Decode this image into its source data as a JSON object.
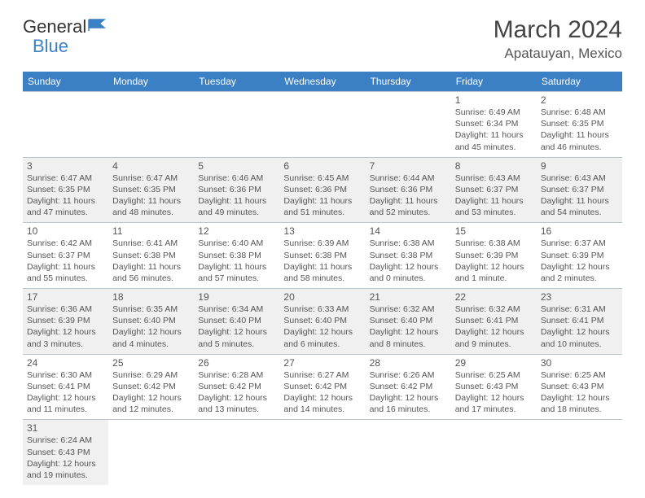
{
  "logo": {
    "text1": "General",
    "text2": "Blue"
  },
  "title": "March 2024",
  "location": "Apatauyan, Mexico",
  "colors": {
    "header_bg": "#3b7fc4",
    "header_fg": "#ffffff",
    "row_alt": "#f0f0f0",
    "border": "#b8c5d0"
  },
  "day_headers": [
    "Sunday",
    "Monday",
    "Tuesday",
    "Wednesday",
    "Thursday",
    "Friday",
    "Saturday"
  ],
  "weeks": [
    [
      null,
      null,
      null,
      null,
      null,
      {
        "n": "1",
        "sr": "Sunrise: 6:49 AM",
        "ss": "Sunset: 6:34 PM",
        "dl": "Daylight: 11 hours and 45 minutes."
      },
      {
        "n": "2",
        "sr": "Sunrise: 6:48 AM",
        "ss": "Sunset: 6:35 PM",
        "dl": "Daylight: 11 hours and 46 minutes."
      }
    ],
    [
      {
        "n": "3",
        "sr": "Sunrise: 6:47 AM",
        "ss": "Sunset: 6:35 PM",
        "dl": "Daylight: 11 hours and 47 minutes."
      },
      {
        "n": "4",
        "sr": "Sunrise: 6:47 AM",
        "ss": "Sunset: 6:35 PM",
        "dl": "Daylight: 11 hours and 48 minutes."
      },
      {
        "n": "5",
        "sr": "Sunrise: 6:46 AM",
        "ss": "Sunset: 6:36 PM",
        "dl": "Daylight: 11 hours and 49 minutes."
      },
      {
        "n": "6",
        "sr": "Sunrise: 6:45 AM",
        "ss": "Sunset: 6:36 PM",
        "dl": "Daylight: 11 hours and 51 minutes."
      },
      {
        "n": "7",
        "sr": "Sunrise: 6:44 AM",
        "ss": "Sunset: 6:36 PM",
        "dl": "Daylight: 11 hours and 52 minutes."
      },
      {
        "n": "8",
        "sr": "Sunrise: 6:43 AM",
        "ss": "Sunset: 6:37 PM",
        "dl": "Daylight: 11 hours and 53 minutes."
      },
      {
        "n": "9",
        "sr": "Sunrise: 6:43 AM",
        "ss": "Sunset: 6:37 PM",
        "dl": "Daylight: 11 hours and 54 minutes."
      }
    ],
    [
      {
        "n": "10",
        "sr": "Sunrise: 6:42 AM",
        "ss": "Sunset: 6:37 PM",
        "dl": "Daylight: 11 hours and 55 minutes."
      },
      {
        "n": "11",
        "sr": "Sunrise: 6:41 AM",
        "ss": "Sunset: 6:38 PM",
        "dl": "Daylight: 11 hours and 56 minutes."
      },
      {
        "n": "12",
        "sr": "Sunrise: 6:40 AM",
        "ss": "Sunset: 6:38 PM",
        "dl": "Daylight: 11 hours and 57 minutes."
      },
      {
        "n": "13",
        "sr": "Sunrise: 6:39 AM",
        "ss": "Sunset: 6:38 PM",
        "dl": "Daylight: 11 hours and 58 minutes."
      },
      {
        "n": "14",
        "sr": "Sunrise: 6:38 AM",
        "ss": "Sunset: 6:38 PM",
        "dl": "Daylight: 12 hours and 0 minutes."
      },
      {
        "n": "15",
        "sr": "Sunrise: 6:38 AM",
        "ss": "Sunset: 6:39 PM",
        "dl": "Daylight: 12 hours and 1 minute."
      },
      {
        "n": "16",
        "sr": "Sunrise: 6:37 AM",
        "ss": "Sunset: 6:39 PM",
        "dl": "Daylight: 12 hours and 2 minutes."
      }
    ],
    [
      {
        "n": "17",
        "sr": "Sunrise: 6:36 AM",
        "ss": "Sunset: 6:39 PM",
        "dl": "Daylight: 12 hours and 3 minutes."
      },
      {
        "n": "18",
        "sr": "Sunrise: 6:35 AM",
        "ss": "Sunset: 6:40 PM",
        "dl": "Daylight: 12 hours and 4 minutes."
      },
      {
        "n": "19",
        "sr": "Sunrise: 6:34 AM",
        "ss": "Sunset: 6:40 PM",
        "dl": "Daylight: 12 hours and 5 minutes."
      },
      {
        "n": "20",
        "sr": "Sunrise: 6:33 AM",
        "ss": "Sunset: 6:40 PM",
        "dl": "Daylight: 12 hours and 6 minutes."
      },
      {
        "n": "21",
        "sr": "Sunrise: 6:32 AM",
        "ss": "Sunset: 6:40 PM",
        "dl": "Daylight: 12 hours and 8 minutes."
      },
      {
        "n": "22",
        "sr": "Sunrise: 6:32 AM",
        "ss": "Sunset: 6:41 PM",
        "dl": "Daylight: 12 hours and 9 minutes."
      },
      {
        "n": "23",
        "sr": "Sunrise: 6:31 AM",
        "ss": "Sunset: 6:41 PM",
        "dl": "Daylight: 12 hours and 10 minutes."
      }
    ],
    [
      {
        "n": "24",
        "sr": "Sunrise: 6:30 AM",
        "ss": "Sunset: 6:41 PM",
        "dl": "Daylight: 12 hours and 11 minutes."
      },
      {
        "n": "25",
        "sr": "Sunrise: 6:29 AM",
        "ss": "Sunset: 6:42 PM",
        "dl": "Daylight: 12 hours and 12 minutes."
      },
      {
        "n": "26",
        "sr": "Sunrise: 6:28 AM",
        "ss": "Sunset: 6:42 PM",
        "dl": "Daylight: 12 hours and 13 minutes."
      },
      {
        "n": "27",
        "sr": "Sunrise: 6:27 AM",
        "ss": "Sunset: 6:42 PM",
        "dl": "Daylight: 12 hours and 14 minutes."
      },
      {
        "n": "28",
        "sr": "Sunrise: 6:26 AM",
        "ss": "Sunset: 6:42 PM",
        "dl": "Daylight: 12 hours and 16 minutes."
      },
      {
        "n": "29",
        "sr": "Sunrise: 6:25 AM",
        "ss": "Sunset: 6:43 PM",
        "dl": "Daylight: 12 hours and 17 minutes."
      },
      {
        "n": "30",
        "sr": "Sunrise: 6:25 AM",
        "ss": "Sunset: 6:43 PM",
        "dl": "Daylight: 12 hours and 18 minutes."
      }
    ],
    [
      {
        "n": "31",
        "sr": "Sunrise: 6:24 AM",
        "ss": "Sunset: 6:43 PM",
        "dl": "Daylight: 12 hours and 19 minutes."
      },
      null,
      null,
      null,
      null,
      null,
      null
    ]
  ]
}
